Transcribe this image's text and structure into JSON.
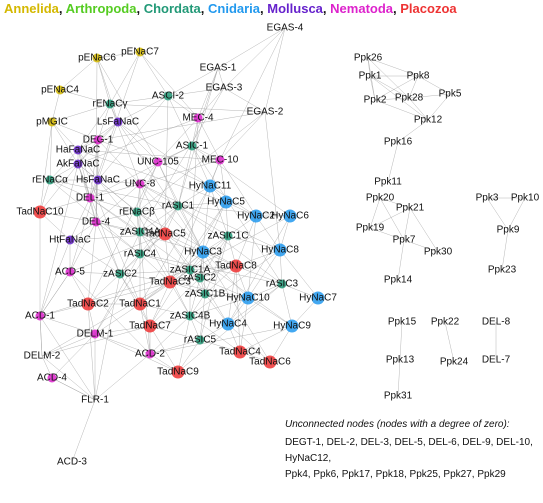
{
  "legend": [
    {
      "name": "Annelida",
      "color": "#d4b800"
    },
    {
      "name": "Arthropoda",
      "color": "#55cc22"
    },
    {
      "name": "Chordata",
      "color": "#229977"
    },
    {
      "name": "Cnidaria",
      "color": "#2299ee"
    },
    {
      "name": "Mollusca",
      "color": "#6622cc"
    },
    {
      "name": "Nematoda",
      "color": "#dd22cc"
    },
    {
      "name": "Placozoa",
      "color": "#ee3333"
    }
  ],
  "legend_separator": ",",
  "nodes": [
    {
      "label": "EGAS-4"
    },
    {
      "label": "pENaC6",
      "group": "Annelida"
    },
    {
      "label": "pENaC7",
      "group": "Annelida"
    },
    {
      "label": "pENaC4",
      "group": "Annelida"
    },
    {
      "label": "rENaCγ",
      "group": "Chordata"
    },
    {
      "label": "LsFaNaC",
      "group": "Mollusca"
    },
    {
      "label": "ASCI-2",
      "group": "Chordata"
    },
    {
      "label": "EGAS-1"
    },
    {
      "label": "EGAS-3"
    },
    {
      "label": "EGAS-2"
    },
    {
      "label": "MEC-4",
      "group": "Nematoda"
    },
    {
      "label": "pMGIC",
      "group": "Annelida"
    },
    {
      "label": "DEG-1",
      "group": "Nematoda"
    },
    {
      "label": "ASIC-1",
      "group": "Chordata"
    },
    {
      "label": "HaFaNaC",
      "group": "Mollusca"
    },
    {
      "label": "MEC-10",
      "group": "Nematoda"
    },
    {
      "label": "UNC-105",
      "group": "Nematoda"
    },
    {
      "label": "AkFaNaC",
      "group": "Mollusca"
    },
    {
      "label": "rENaCα",
      "group": "Chordata"
    },
    {
      "label": "HsFaNaC",
      "group": "Mollusca"
    },
    {
      "label": "UNC-8",
      "group": "Nematoda"
    },
    {
      "label": "DEL-1",
      "group": "Nematoda"
    },
    {
      "label": "TadNaC10",
      "group": "Placozoa"
    },
    {
      "label": "rENaCβ",
      "group": "Chordata"
    },
    {
      "label": "rASIC1",
      "group": "Chordata"
    },
    {
      "label": "HyNaC11",
      "group": "Cnidaria"
    },
    {
      "label": "HyNaC5",
      "group": "Cnidaria"
    },
    {
      "label": "DEL-4",
      "group": "Nematoda"
    },
    {
      "label": "HtFaNaC",
      "group": "Mollusca"
    },
    {
      "label": "zASIC4A",
      "group": "Chordata"
    },
    {
      "label": "TadNaC5",
      "group": "Placozoa"
    },
    {
      "label": "HyNaC2",
      "group": "Cnidaria"
    },
    {
      "label": "HyNaC6",
      "group": "Cnidaria"
    },
    {
      "label": "zASIC1C",
      "group": "Chordata"
    },
    {
      "label": "HyNaC8",
      "group": "Cnidaria"
    },
    {
      "label": "rASIC4",
      "group": "Chordata"
    },
    {
      "label": "HyNaC3",
      "group": "Cnidaria"
    },
    {
      "label": "rASIC2",
      "group": "Chordata"
    },
    {
      "label": "TadNaC8",
      "group": "Placozoa"
    },
    {
      "label": "zASIC1A",
      "group": "Chordata"
    },
    {
      "label": "ACD-5",
      "group": "Nematoda"
    },
    {
      "label": "zASIC2",
      "group": "Chordata"
    },
    {
      "label": "TadNaC3",
      "group": "Placozoa"
    },
    {
      "label": "rASIC3",
      "group": "Chordata"
    },
    {
      "label": "zASIC1B",
      "group": "Chordata"
    },
    {
      "label": "HyNaC10",
      "group": "Cnidaria"
    },
    {
      "label": "HyNaC7",
      "group": "Cnidaria"
    },
    {
      "label": "TadNaC2",
      "group": "Placozoa"
    },
    {
      "label": "TadNaC1",
      "group": "Placozoa"
    },
    {
      "label": "zASIC4B",
      "group": "Chordata"
    },
    {
      "label": "HyNaC4",
      "group": "Cnidaria"
    },
    {
      "label": "HyNaC9",
      "group": "Cnidaria"
    },
    {
      "label": "ACD-1",
      "group": "Nematoda"
    },
    {
      "label": "TadNaC7",
      "group": "Placozoa"
    },
    {
      "label": "DELM-1",
      "group": "Nematoda"
    },
    {
      "label": "rASIC5",
      "group": "Chordata"
    },
    {
      "label": "DELM-2"
    },
    {
      "label": "ACD-2",
      "group": "Nematoda"
    },
    {
      "label": "TadNaC4",
      "group": "Placozoa"
    },
    {
      "label": "TadNaC6",
      "group": "Placozoa"
    },
    {
      "label": "ACD-4",
      "group": "Nematoda"
    },
    {
      "label": "TadNaC9",
      "group": "Placozoa"
    },
    {
      "label": "FLR-1"
    },
    {
      "label": "ACD-3"
    },
    {
      "label": "Ppk26"
    },
    {
      "label": "Ppk1"
    },
    {
      "label": "Ppk8"
    },
    {
      "label": "Ppk5"
    },
    {
      "label": "Ppk2"
    },
    {
      "label": "Ppk28"
    },
    {
      "label": "Ppk12"
    },
    {
      "label": "Ppk16"
    },
    {
      "label": "Ppk11"
    },
    {
      "label": "Ppk20"
    },
    {
      "label": "Ppk21"
    },
    {
      "label": "Ppk19"
    },
    {
      "label": "Ppk7"
    },
    {
      "label": "Ppk30"
    },
    {
      "label": "Ppk14"
    },
    {
      "label": "Ppk3"
    },
    {
      "label": "Ppk10"
    },
    {
      "label": "Ppk9"
    },
    {
      "label": "Ppk23"
    },
    {
      "label": "Ppk15"
    },
    {
      "label": "Ppk22"
    },
    {
      "label": "DEL-8"
    },
    {
      "label": "Ppk13"
    },
    {
      "label": "Ppk24"
    },
    {
      "label": "DEL-7"
    },
    {
      "label": "Ppk31"
    }
  ],
  "note": {
    "title": "Unconnected nodes (nodes with a degree of zero):",
    "lines": [
      "DEGT-1, DEL-2, DEL-3, DEL-5, DEL-6, DEL-9, DEL-10,",
      "HyNaC12,",
      "Ppk4, Ppk6, Ppk17, Ppk18, Ppk25, Ppk27, Ppk29"
    ]
  }
}
